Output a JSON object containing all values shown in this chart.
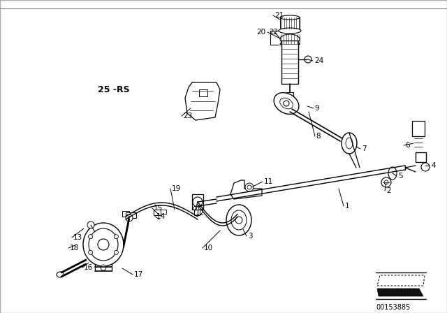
{
  "bg_color": "#ffffff",
  "line_color": "#000000",
  "text_color": "#000000",
  "diagram_id": "00153885",
  "label_25rs": "25 -RS",
  "border_color": "#888888"
}
